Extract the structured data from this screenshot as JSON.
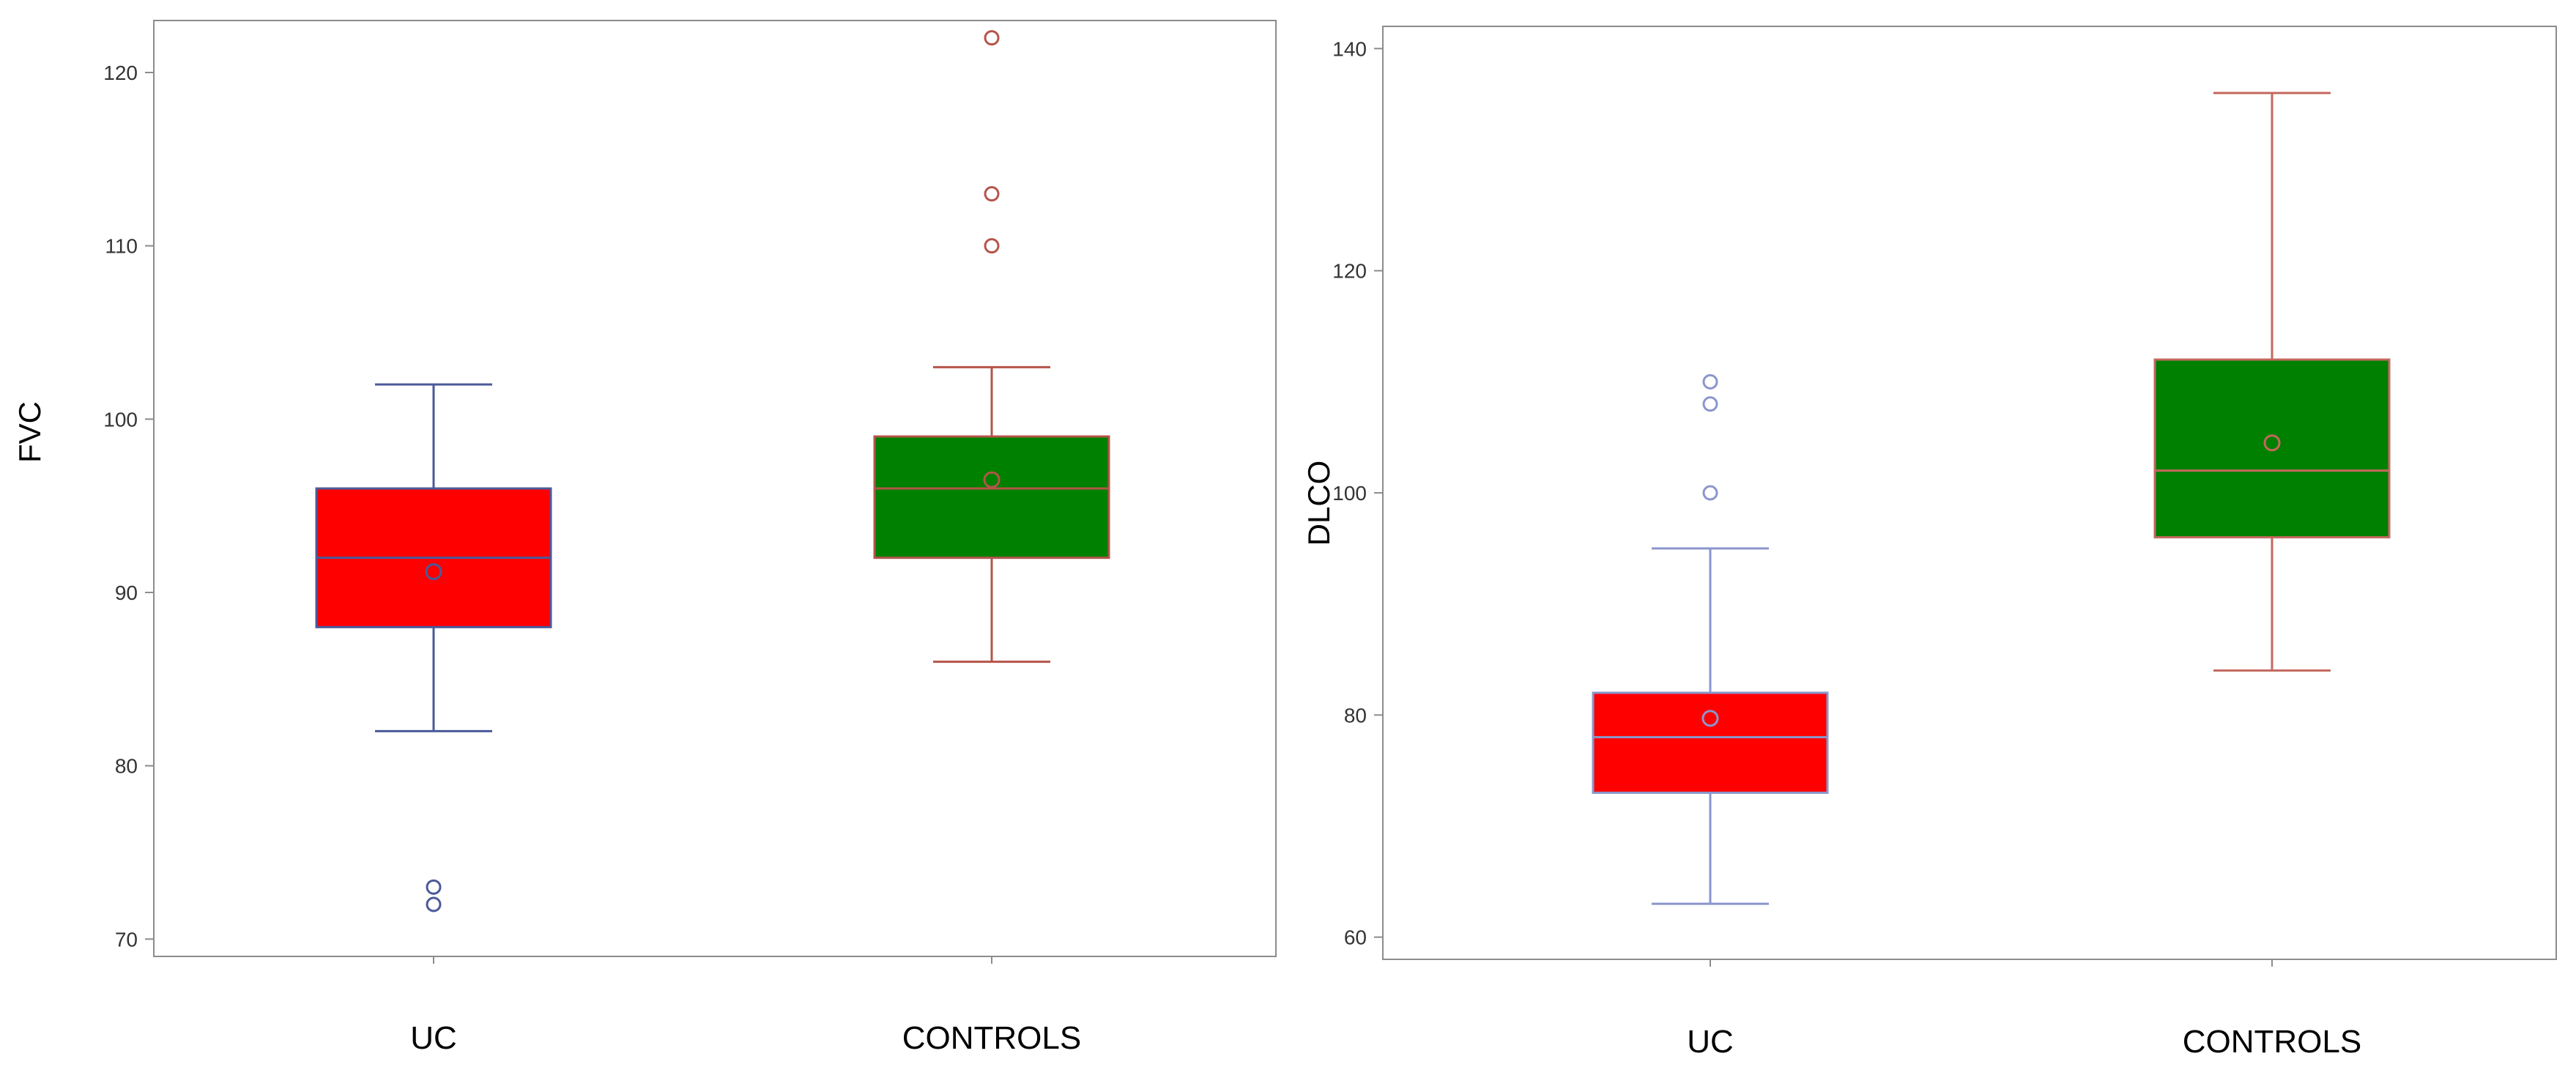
{
  "chart_data": [
    {
      "type": "box",
      "title": "",
      "xlabel": "",
      "ylabel": "FVC",
      "ylim": [
        69,
        123
      ],
      "yticks": [
        70,
        80,
        90,
        100,
        110,
        120
      ],
      "categories": [
        "UC",
        "CONTROLS"
      ],
      "boxes": [
        {
          "category": "UC",
          "fill": "#ff0000",
          "line": "#4a5a9a",
          "whisker_low": 82,
          "q1": 88,
          "median": 92,
          "q3": 96,
          "whisker_high": 102,
          "mean": 91.2,
          "outliers": [
            72,
            73
          ]
        },
        {
          "category": "CONTROLS",
          "fill": "#008000",
          "line": "#b5544a",
          "whisker_low": 86,
          "q1": 92,
          "median": 96,
          "q3": 99,
          "whisker_high": 103,
          "mean": 96.5,
          "outliers": [
            110,
            113,
            122
          ]
        }
      ]
    },
    {
      "type": "box",
      "title": "",
      "xlabel": "",
      "ylabel": "DLCO",
      "ylim": [
        58,
        142
      ],
      "yticks": [
        60,
        80,
        100,
        120,
        140
      ],
      "categories": [
        "UC",
        "CONTROLS"
      ],
      "boxes": [
        {
          "category": "UC",
          "fill": "#ff0000",
          "line": "#8a96cc",
          "whisker_low": 63,
          "q1": 73,
          "median": 78,
          "q3": 82,
          "whisker_high": 95,
          "mean": 79.7,
          "outliers": [
            100,
            108,
            110
          ]
        },
        {
          "category": "CONTROLS",
          "fill": "#008000",
          "line": "#c4685e",
          "whisker_low": 84,
          "q1": 96,
          "median": 102,
          "q3": 112,
          "whisker_high": 136,
          "mean": 104.5,
          "outliers": []
        }
      ]
    }
  ]
}
